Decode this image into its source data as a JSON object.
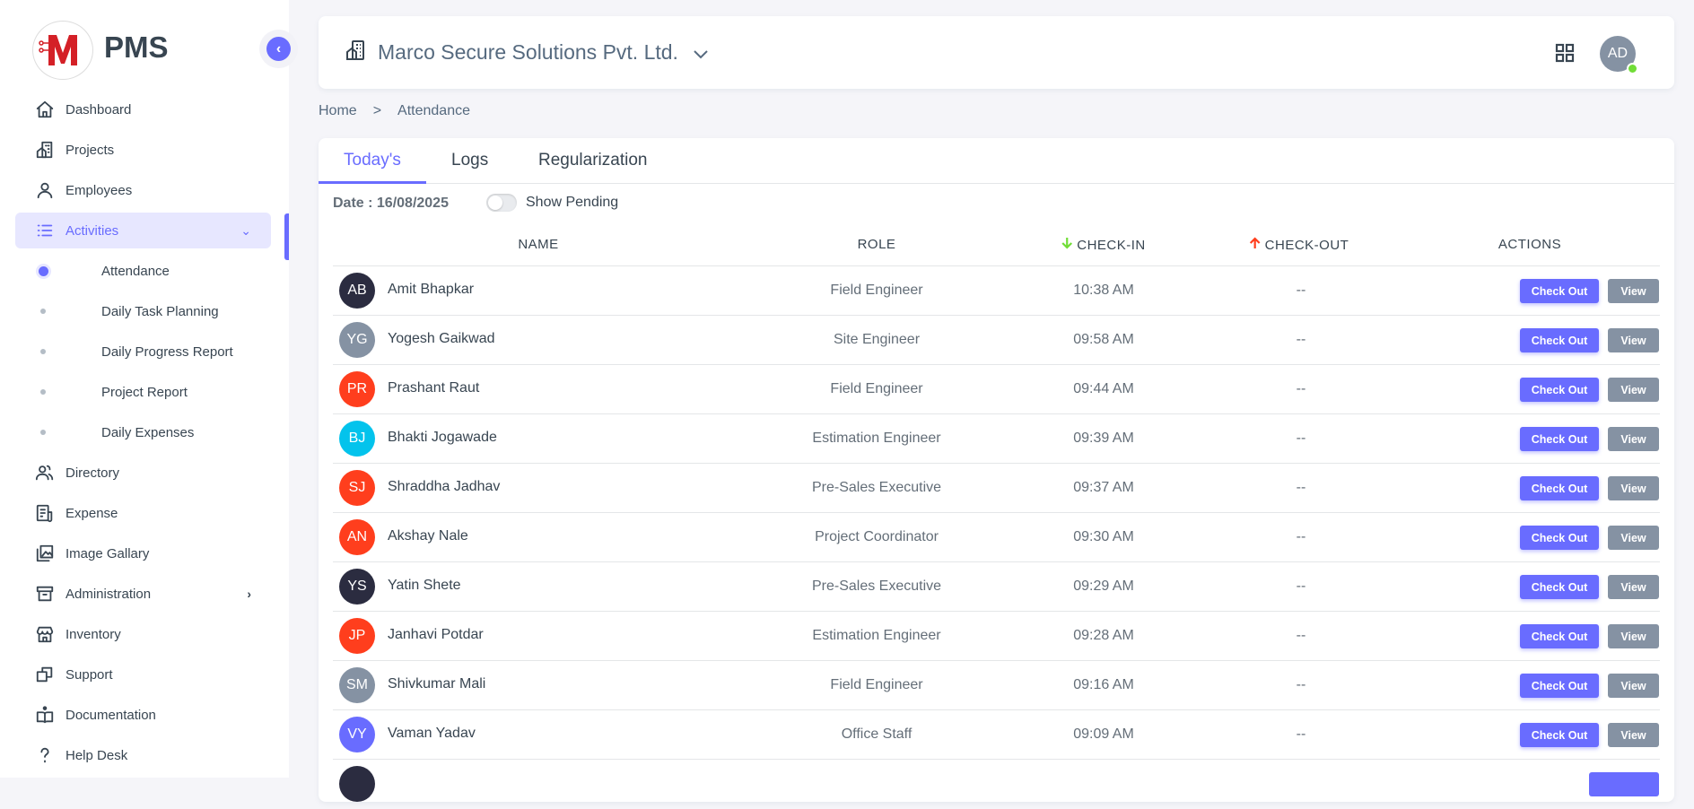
{
  "brand": {
    "name": "PMS",
    "logo_letter": "M"
  },
  "colors": {
    "primary": "#696cff",
    "secondary": "#8592a3",
    "danger": "#ff3e1d",
    "info": "#03c3ec",
    "dark": "#2b2c40",
    "success": "#71dd37"
  },
  "sidebar": {
    "items": [
      {
        "label": "Dashboard",
        "icon": "home-icon"
      },
      {
        "label": "Projects",
        "icon": "building-icon"
      },
      {
        "label": "Employees",
        "icon": "user-icon"
      },
      {
        "label": "Activities",
        "icon": "list-icon",
        "active": true,
        "expanded": true
      },
      {
        "label": "Directory",
        "icon": "users-icon"
      },
      {
        "label": "Expense",
        "icon": "receipt-icon"
      },
      {
        "label": "Image Gallary",
        "icon": "gallery-icon"
      },
      {
        "label": "Administration",
        "icon": "archive-icon",
        "has_submenu": true
      },
      {
        "label": "Inventory",
        "icon": "store-icon"
      },
      {
        "label": "Support",
        "icon": "copy-icon"
      },
      {
        "label": "Documentation",
        "icon": "book-icon"
      },
      {
        "label": "Help Desk",
        "icon": "question-icon"
      }
    ],
    "sub_items": [
      {
        "label": "Attendance",
        "active": true
      },
      {
        "label": "Daily Task Planning"
      },
      {
        "label": "Daily Progress Report"
      },
      {
        "label": "Project Report"
      },
      {
        "label": "Daily Expenses"
      }
    ]
  },
  "header": {
    "company": "Marco Secure Solutions Pvt. Ltd.",
    "user_initials": "AD"
  },
  "breadcrumb": {
    "home": "Home",
    "separator": ">",
    "current": "Attendance"
  },
  "tabs": [
    {
      "label": "Today's",
      "active": true
    },
    {
      "label": "Logs"
    },
    {
      "label": "Regularization"
    }
  ],
  "filters": {
    "date_label": "Date : 16/08/2025",
    "show_pending_label": "Show Pending",
    "show_pending": false
  },
  "table": {
    "columns": [
      "NAME",
      "ROLE",
      "CHECK-IN",
      "CHECK-OUT",
      "ACTIONS"
    ],
    "checkout_label": "Check Out",
    "view_label": "View",
    "rows": [
      {
        "initials": "AB",
        "name": "Amit Bhapkar",
        "role": "Field Engineer",
        "check_in": "10:38 AM",
        "check_out": "--",
        "color": "#2b2c40"
      },
      {
        "initials": "YG",
        "name": "Yogesh Gaikwad",
        "role": "Site Engineer",
        "check_in": "09:58 AM",
        "check_out": "--",
        "color": "#8592a3"
      },
      {
        "initials": "PR",
        "name": "Prashant Raut",
        "role": "Field Engineer",
        "check_in": "09:44 AM",
        "check_out": "--",
        "color": "#ff3e1d"
      },
      {
        "initials": "BJ",
        "name": "Bhakti Jogawade",
        "role": "Estimation Engineer",
        "check_in": "09:39 AM",
        "check_out": "--",
        "color": "#03c3ec"
      },
      {
        "initials": "SJ",
        "name": "Shraddha Jadhav",
        "role": "Pre-Sales Executive",
        "check_in": "09:37 AM",
        "check_out": "--",
        "color": "#ff3e1d"
      },
      {
        "initials": "AN",
        "name": "Akshay Nale",
        "role": "Project Coordinator",
        "check_in": "09:30 AM",
        "check_out": "--",
        "color": "#ff3e1d"
      },
      {
        "initials": "YS",
        "name": "Yatin Shete",
        "role": "Pre-Sales Executive",
        "check_in": "09:29 AM",
        "check_out": "--",
        "color": "#2b2c40"
      },
      {
        "initials": "JP",
        "name": "Janhavi Potdar",
        "role": "Estimation Engineer",
        "check_in": "09:28 AM",
        "check_out": "--",
        "color": "#ff3e1d"
      },
      {
        "initials": "SM",
        "name": "Shivkumar Mali",
        "role": "Field Engineer",
        "check_in": "09:16 AM",
        "check_out": "--",
        "color": "#8592a3"
      },
      {
        "initials": "VY",
        "name": "Vaman Yadav",
        "role": "Office Staff",
        "check_in": "09:09 AM",
        "check_out": "--",
        "color": "#696cff"
      }
    ]
  }
}
